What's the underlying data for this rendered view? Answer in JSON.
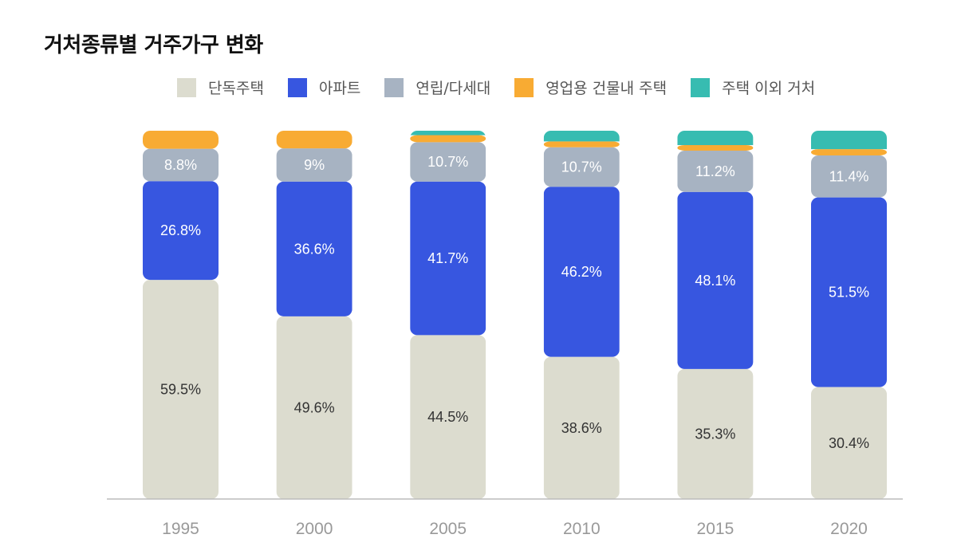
{
  "chart_data": {
    "type": "bar",
    "stacked": true,
    "title": "거처종류별 거주가구 변화",
    "xlabel": "",
    "ylabel": "",
    "ylim": [
      0,
      100
    ],
    "grid": false,
    "legend_position": "top",
    "categories": [
      "1995",
      "2000",
      "2005",
      "2010",
      "2015",
      "2020"
    ],
    "series": [
      {
        "name": "단독주택",
        "color": "#dcdccf",
        "label_color": "#333333",
        "values": [
          59.5,
          49.6,
          44.5,
          38.6,
          35.3,
          30.4
        ],
        "labels": [
          "59.5%",
          "49.6%",
          "44.5%",
          "38.6%",
          "35.3%",
          "30.4%"
        ]
      },
      {
        "name": "아파트",
        "color": "#3756e0",
        "label_color": "#ffffff",
        "values": [
          26.8,
          36.6,
          41.7,
          46.2,
          48.1,
          51.5
        ],
        "labels": [
          "26.8%",
          "36.6%",
          "41.7%",
          "46.2%",
          "48.1%",
          "51.5%"
        ]
      },
      {
        "name": "연립/다세대",
        "color": "#a7b3c2",
        "label_color": "#ffffff",
        "values": [
          8.8,
          9.0,
          10.7,
          10.7,
          11.2,
          11.4
        ],
        "labels": [
          "8.8%",
          "9%",
          "10.7%",
          "10.7%",
          "11.2%",
          "11.4%"
        ]
      },
      {
        "name": "영업용 건물내 주택",
        "color": "#f8ab33",
        "label_color": "#ffffff",
        "values": [
          4.9,
          4.8,
          1.9,
          1.6,
          1.5,
          1.7
        ],
        "labels": null
      },
      {
        "name": "주택 이외 거처",
        "color": "#37bcb1",
        "label_color": "#ffffff",
        "values": [
          0.0,
          0.0,
          1.2,
          2.9,
          3.9,
          5.0
        ],
        "labels": null
      }
    ]
  }
}
